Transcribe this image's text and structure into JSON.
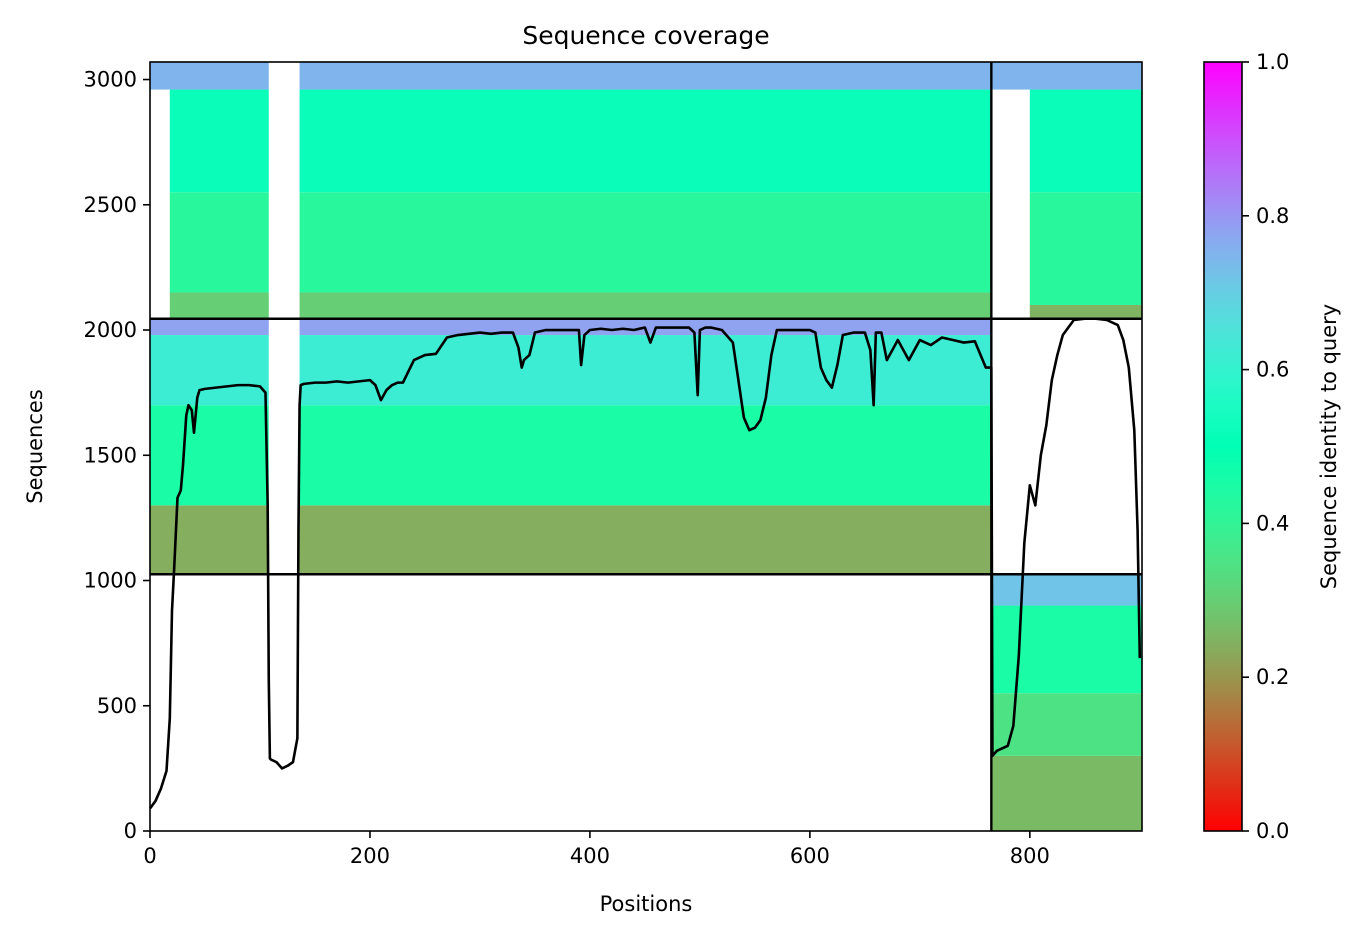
{
  "chart_data": {
    "type": "heatmap",
    "title": "Sequence coverage",
    "xlabel": "Positions",
    "ylabel": "Sequences",
    "xlim": [
      0,
      902
    ],
    "ylim": [
      0,
      3070
    ],
    "x_ticks": [
      0,
      200,
      400,
      600,
      800
    ],
    "y_ticks": [
      0,
      500,
      1000,
      1500,
      2000,
      2500,
      3000
    ],
    "colorbar": {
      "label": "Sequence identity to query",
      "range": [
        0.0,
        1.0
      ],
      "ticks": [
        0.0,
        0.2,
        0.4,
        0.6,
        0.8,
        1.0
      ],
      "tick_labels": [
        "0.0",
        "0.2",
        "0.4",
        "0.6",
        "0.8",
        "1.0"
      ],
      "colormap": "rainbow_r"
    },
    "dividers": {
      "vertical_x": [
        765
      ],
      "horizontal_y": [
        1025,
        2045
      ]
    },
    "blocks": [
      {
        "x": [
          0,
          765
        ],
        "y": [
          2045,
          3070
        ],
        "identity_bands": [
          {
            "y": [
              2045,
              2150
            ],
            "identity": 0.3
          },
          {
            "y": [
              2150,
              2550
            ],
            "identity": 0.42
          },
          {
            "y": [
              2550,
              2960
            ],
            "identity": 0.52
          },
          {
            "y": [
              2960,
              3070
            ],
            "identity": 0.75
          }
        ]
      },
      {
        "x": [
          0,
          765
        ],
        "y": [
          1025,
          2045
        ],
        "identity_bands": [
          {
            "y": [
              1025,
              1300
            ],
            "identity": 0.24
          },
          {
            "y": [
              1300,
              1700
            ],
            "identity": 0.45
          },
          {
            "y": [
              1700,
              1980
            ],
            "identity": 0.62
          },
          {
            "y": [
              1980,
              2045
            ],
            "identity": 0.78
          }
        ]
      },
      {
        "x": [
          765,
          902
        ],
        "y": [
          2045,
          3070
        ],
        "identity_bands": [
          {
            "y": [
              2045,
              2100
            ],
            "identity": 0.25
          },
          {
            "y": [
              2100,
              2550
            ],
            "identity": 0.42
          },
          {
            "y": [
              2550,
              2960
            ],
            "identity": 0.52
          },
          {
            "y": [
              2960,
              3070
            ],
            "identity": 0.75
          }
        ]
      },
      {
        "x": [
          765,
          902
        ],
        "y": [
          0,
          1025
        ],
        "identity_bands": [
          {
            "y": [
              0,
              300
            ],
            "identity": 0.26
          },
          {
            "y": [
              300,
              550
            ],
            "identity": 0.35
          },
          {
            "y": [
              550,
              900
            ],
            "identity": 0.45
          },
          {
            "y": [
              900,
              1025
            ],
            "identity": 0.72
          }
        ]
      }
    ],
    "gaps": [
      {
        "x": [
          108,
          136
        ],
        "y": [
          2045,
          3070
        ]
      },
      {
        "x": [
          108,
          136
        ],
        "y": [
          1025,
          2045
        ]
      },
      {
        "x": [
          0,
          18
        ],
        "y": [
          2045,
          2960
        ]
      },
      {
        "x": [
          765,
          800
        ],
        "y": [
          2045,
          2960
        ]
      }
    ],
    "coverage_line": {
      "x": [
        0,
        5,
        10,
        15,
        18,
        20,
        22,
        25,
        28,
        30,
        33,
        35,
        38,
        40,
        43,
        45,
        50,
        60,
        70,
        80,
        90,
        100,
        105,
        107,
        108,
        109,
        110,
        115,
        120,
        125,
        130,
        134,
        135,
        136,
        137,
        140,
        150,
        160,
        170,
        180,
        190,
        200,
        205,
        210,
        215,
        220,
        225,
        230,
        240,
        250,
        260,
        270,
        280,
        290,
        300,
        310,
        320,
        330,
        335,
        338,
        340,
        345,
        350,
        360,
        370,
        380,
        390,
        392,
        395,
        400,
        410,
        420,
        430,
        440,
        450,
        455,
        460,
        470,
        480,
        490,
        495,
        498,
        500,
        505,
        510,
        520,
        530,
        535,
        540,
        545,
        550,
        555,
        560,
        565,
        570,
        580,
        590,
        600,
        605,
        610,
        615,
        620,
        625,
        630,
        640,
        650,
        655,
        658,
        660,
        665,
        670,
        680,
        690,
        700,
        710,
        720,
        730,
        740,
        750,
        760,
        765,
        766,
        770,
        775,
        780,
        785,
        790,
        795,
        800,
        805,
        810,
        815,
        820,
        825,
        830,
        840,
        850,
        860,
        870,
        880,
        885,
        890,
        895,
        898,
        900
      ],
      "y": [
        90,
        120,
        170,
        240,
        450,
        880,
        1050,
        1330,
        1360,
        1460,
        1660,
        1700,
        1680,
        1590,
        1730,
        1760,
        1765,
        1770,
        1775,
        1780,
        1780,
        1775,
        1750,
        1300,
        600,
        290,
        285,
        275,
        250,
        260,
        275,
        370,
        1200,
        1700,
        1780,
        1785,
        1790,
        1790,
        1795,
        1790,
        1795,
        1800,
        1780,
        1720,
        1760,
        1780,
        1790,
        1790,
        1880,
        1900,
        1905,
        1970,
        1980,
        1985,
        1990,
        1985,
        1990,
        1990,
        1930,
        1850,
        1880,
        1900,
        1990,
        2000,
        2000,
        2000,
        2000,
        1860,
        1980,
        2000,
        2005,
        2000,
        2005,
        2000,
        2010,
        1950,
        2010,
        2010,
        2010,
        2010,
        1990,
        1740,
        2000,
        2010,
        2010,
        2000,
        1950,
        1800,
        1650,
        1600,
        1610,
        1640,
        1730,
        1900,
        2000,
        2000,
        2000,
        2000,
        1990,
        1850,
        1800,
        1770,
        1860,
        1980,
        1990,
        1990,
        1920,
        1700,
        1990,
        1990,
        1880,
        1960,
        1880,
        1960,
        1940,
        1970,
        1960,
        1950,
        1955,
        1850,
        1850,
        300,
        320,
        330,
        340,
        420,
        700,
        1150,
        1380,
        1300,
        1500,
        1620,
        1800,
        1900,
        1980,
        2040,
        2045,
        2045,
        2040,
        2020,
        1960,
        1850,
        1600,
        1200,
        690
      ]
    },
    "grid": false,
    "legend": "none"
  }
}
